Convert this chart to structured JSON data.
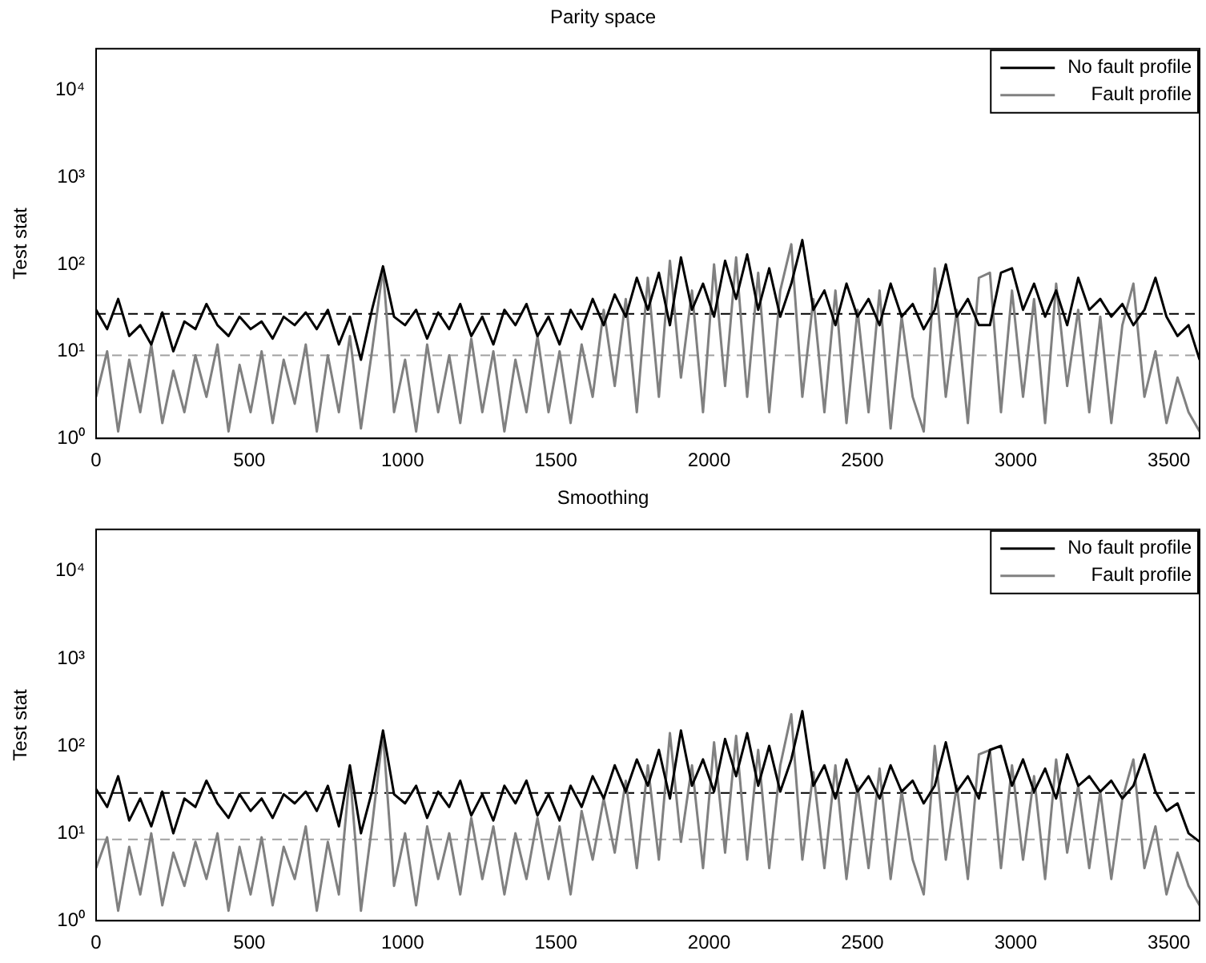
{
  "chart_data": [
    {
      "type": "line",
      "title": "Parity space",
      "ylabel": "Test stat",
      "log": true,
      "grid": false,
      "legend": "top right",
      "marker": "none",
      "line_style": "solid",
      "xlim": [
        0,
        3600
      ],
      "xticks": [
        0,
        500,
        1000,
        1500,
        2000,
        2500,
        3000,
        3500
      ],
      "ylim": [
        1,
        30000
      ],
      "yticks": [
        {
          "value": 1,
          "label": "10⁰"
        },
        {
          "value": 10,
          "label": "10¹"
        },
        {
          "value": 100,
          "label": "10²"
        },
        {
          "value": 1000,
          "label": "10³"
        },
        {
          "value": 10000,
          "label": "10⁴"
        }
      ],
      "x": [
        0,
        36,
        72,
        108,
        144,
        180,
        216,
        252,
        288,
        324,
        360,
        396,
        432,
        468,
        504,
        540,
        576,
        612,
        648,
        684,
        720,
        756,
        792,
        828,
        864,
        900,
        936,
        972,
        1008,
        1044,
        1080,
        1116,
        1152,
        1188,
        1224,
        1260,
        1296,
        1332,
        1368,
        1404,
        1440,
        1476,
        1512,
        1548,
        1584,
        1620,
        1656,
        1692,
        1728,
        1764,
        1800,
        1836,
        1872,
        1908,
        1944,
        1980,
        2016,
        2052,
        2088,
        2124,
        2160,
        2196,
        2232,
        2268,
        2304,
        2340,
        2376,
        2412,
        2448,
        2484,
        2520,
        2556,
        2592,
        2628,
        2664,
        2700,
        2736,
        2772,
        2808,
        2844,
        2880,
        2916,
        2952,
        2988,
        3024,
        3060,
        3096,
        3132,
        3168,
        3204,
        3240,
        3276,
        3312,
        3348,
        3384,
        3420,
        3456,
        3492,
        3528,
        3564,
        3600
      ],
      "series": [
        {
          "name": "No fault profile",
          "color": "#000000",
          "values": [
            30,
            18,
            40,
            15,
            20,
            12,
            28,
            10,
            22,
            18,
            35,
            20,
            15,
            25,
            18,
            22,
            14,
            25,
            20,
            28,
            18,
            30,
            12,
            25,
            8,
            30,
            95,
            25,
            20,
            30,
            14,
            28,
            18,
            35,
            15,
            25,
            12,
            30,
            20,
            35,
            15,
            25,
            12,
            30,
            18,
            40,
            20,
            45,
            25,
            70,
            30,
            80,
            20,
            120,
            30,
            60,
            25,
            110,
            40,
            130,
            30,
            90,
            25,
            60,
            190,
            30,
            50,
            20,
            60,
            25,
            40,
            20,
            60,
            25,
            35,
            18,
            30,
            100,
            25,
            40,
            20,
            20,
            80,
            90,
            30,
            60,
            25,
            50,
            20,
            70,
            30,
            40,
            25,
            35,
            20,
            30,
            70,
            25,
            15,
            20,
            8
          ]
        },
        {
          "name": "Fault profile",
          "color": "#808080",
          "values": [
            3,
            10,
            1.2,
            8,
            2,
            12,
            1.5,
            6,
            2,
            9,
            3,
            12,
            1.2,
            7,
            2,
            10,
            1.5,
            8,
            2.5,
            12,
            1.2,
            9,
            2,
            15,
            1.3,
            10,
            90,
            2,
            8,
            1.2,
            12,
            2,
            9,
            1.5,
            14,
            2,
            10,
            1.2,
            8,
            2,
            15,
            2,
            10,
            1.5,
            12,
            3,
            30,
            4,
            40,
            2,
            70,
            3,
            110,
            5,
            50,
            2,
            100,
            4,
            120,
            3,
            80,
            2,
            50,
            170,
            3,
            40,
            2,
            50,
            1.5,
            30,
            2,
            50,
            1.3,
            25,
            3,
            1.2,
            90,
            3,
            30,
            1.5,
            70,
            80,
            2,
            50,
            3,
            40,
            1.5,
            60,
            4,
            30,
            2,
            25,
            1.5,
            20,
            60,
            3,
            10,
            1.5,
            5,
            2,
            1.2
          ]
        }
      ],
      "ref_lines": [
        {
          "axis": "y",
          "value": 27,
          "color": "#000000",
          "line_style": "dashed"
        },
        {
          "axis": "y",
          "value": 9,
          "color": "#a0a0a0",
          "line_style": "dashed"
        }
      ]
    },
    {
      "type": "line",
      "title": "Smoothing",
      "ylabel": "Test stat",
      "log": true,
      "grid": false,
      "legend": "top right",
      "marker": "none",
      "line_style": "solid",
      "xlim": [
        0,
        3600
      ],
      "xticks": [
        0,
        500,
        1000,
        1500,
        2000,
        2500,
        3000,
        3500
      ],
      "ylim": [
        1,
        30000
      ],
      "yticks": [
        {
          "value": 1,
          "label": "10⁰"
        },
        {
          "value": 10,
          "label": "10¹"
        },
        {
          "value": 100,
          "label": "10²"
        },
        {
          "value": 1000,
          "label": "10³"
        },
        {
          "value": 10000,
          "label": "10⁴"
        }
      ],
      "x": [
        0,
        36,
        72,
        108,
        144,
        180,
        216,
        252,
        288,
        324,
        360,
        396,
        432,
        468,
        504,
        540,
        576,
        612,
        648,
        684,
        720,
        756,
        792,
        828,
        864,
        900,
        936,
        972,
        1008,
        1044,
        1080,
        1116,
        1152,
        1188,
        1224,
        1260,
        1296,
        1332,
        1368,
        1404,
        1440,
        1476,
        1512,
        1548,
        1584,
        1620,
        1656,
        1692,
        1728,
        1764,
        1800,
        1836,
        1872,
        1908,
        1944,
        1980,
        2016,
        2052,
        2088,
        2124,
        2160,
        2196,
        2232,
        2268,
        2304,
        2340,
        2376,
        2412,
        2448,
        2484,
        2520,
        2556,
        2592,
        2628,
        2664,
        2700,
        2736,
        2772,
        2808,
        2844,
        2880,
        2916,
        2952,
        2988,
        3024,
        3060,
        3096,
        3132,
        3168,
        3204,
        3240,
        3276,
        3312,
        3348,
        3384,
        3420,
        3456,
        3492,
        3528,
        3564,
        3600
      ],
      "series": [
        {
          "name": "No fault profile",
          "color": "#000000",
          "values": [
            32,
            20,
            45,
            14,
            25,
            12,
            30,
            10,
            25,
            20,
            40,
            22,
            15,
            28,
            18,
            25,
            15,
            28,
            22,
            30,
            18,
            35,
            12,
            60,
            10,
            30,
            150,
            28,
            22,
            35,
            15,
            30,
            20,
            40,
            16,
            28,
            14,
            35,
            22,
            40,
            16,
            28,
            14,
            35,
            20,
            45,
            25,
            60,
            30,
            70,
            35,
            90,
            25,
            150,
            35,
            70,
            30,
            120,
            45,
            140,
            35,
            100,
            30,
            70,
            250,
            35,
            60,
            25,
            70,
            30,
            45,
            25,
            60,
            30,
            40,
            22,
            35,
            110,
            30,
            45,
            25,
            90,
            100,
            35,
            70,
            30,
            55,
            25,
            80,
            35,
            45,
            30,
            40,
            25,
            35,
            80,
            30,
            18,
            22,
            10,
            8
          ]
        },
        {
          "name": "Fault profile",
          "color": "#808080",
          "values": [
            4,
            9,
            1.3,
            7,
            2,
            10,
            1.5,
            6,
            2.5,
            8,
            3,
            10,
            1.3,
            7,
            2,
            9,
            1.5,
            7,
            3,
            12,
            1.3,
            8,
            2,
            50,
            1.3,
            12,
            140,
            2.5,
            10,
            1.5,
            12,
            3,
            10,
            2,
            15,
            3,
            12,
            2,
            10,
            3,
            15,
            3,
            12,
            2,
            18,
            5,
            25,
            6,
            40,
            4,
            60,
            5,
            140,
            8,
            60,
            4,
            110,
            6,
            130,
            5,
            90,
            4,
            60,
            230,
            5,
            50,
            4,
            60,
            3,
            35,
            4,
            55,
            3,
            30,
            5,
            2,
            100,
            5,
            35,
            3,
            80,
            90,
            4,
            60,
            5,
            45,
            3,
            70,
            6,
            35,
            4,
            30,
            3,
            25,
            70,
            4,
            12,
            2,
            6,
            2.5,
            1.5
          ]
        }
      ],
      "ref_lines": [
        {
          "axis": "y",
          "value": 29,
          "color": "#000000",
          "line_style": "dashed"
        },
        {
          "axis": "y",
          "value": 8.5,
          "color": "#a0a0a0",
          "line_style": "dashed"
        }
      ]
    }
  ]
}
